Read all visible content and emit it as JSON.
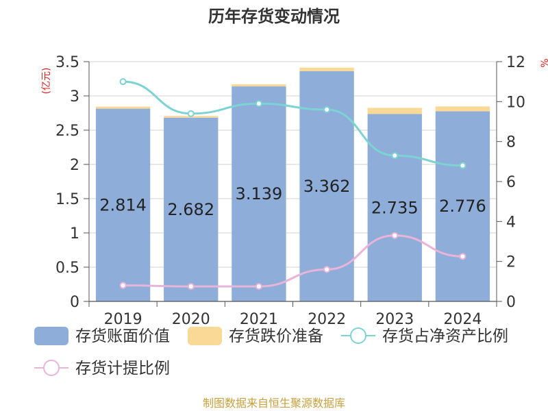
{
  "chart_data": {
    "type": "bar",
    "title": "历年存货变动情况",
    "left_unit": "(亿元)",
    "right_unit": "%",
    "categories": [
      "2019",
      "2020",
      "2021",
      "2022",
      "2023",
      "2024"
    ],
    "ylim": [
      0,
      3.5
    ],
    "y_ticks": [
      "0",
      "0.5",
      "1",
      "1.5",
      "2",
      "2.5",
      "3",
      "3.5"
    ],
    "y2lim": [
      0,
      12
    ],
    "y2_ticks": [
      "0",
      "2",
      "4",
      "6",
      "8",
      "10",
      "12"
    ],
    "bar_value_labels": [
      "2.814",
      "2.682",
      "3.139",
      "3.362",
      "2.735",
      "2.776"
    ],
    "series": [
      {
        "name": "存货账面价值",
        "kind": "bar",
        "axis": "left",
        "color": "#8eadd9",
        "values": [
          2.814,
          2.682,
          3.139,
          3.362,
          2.735,
          2.776
        ]
      },
      {
        "name": "存货跌价准备",
        "kind": "bar-stack",
        "axis": "left",
        "color": "#fad996",
        "values": [
          0.03,
          0.025,
          0.03,
          0.05,
          0.09,
          0.07
        ]
      },
      {
        "name": "存货占净资产比例",
        "kind": "line",
        "axis": "right",
        "color": "#7dd3d3",
        "values": [
          11.0,
          9.4,
          9.9,
          9.6,
          7.3,
          6.8
        ]
      },
      {
        "name": "存货计提比例",
        "kind": "line",
        "axis": "right",
        "color": "#e8b4d8",
        "values": [
          0.8,
          0.75,
          0.75,
          1.6,
          3.3,
          2.25
        ]
      }
    ]
  },
  "source": "制图数据来自恒生聚源数据库"
}
